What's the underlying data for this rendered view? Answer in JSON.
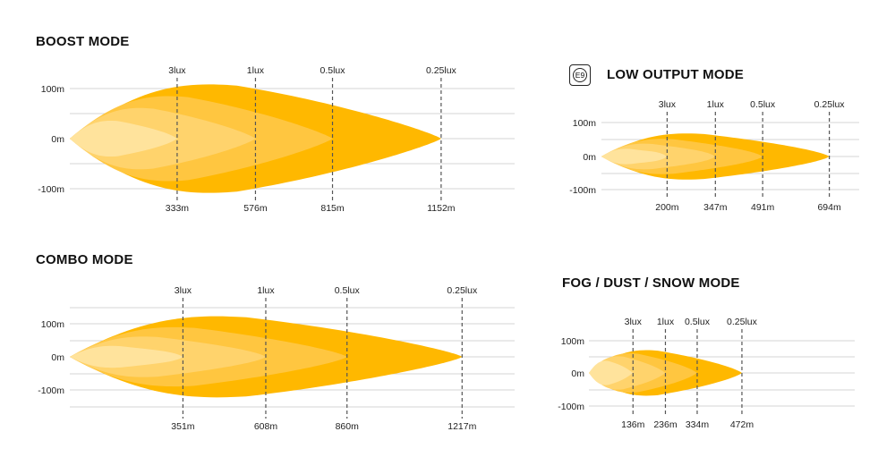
{
  "colors": {
    "outer": "#ffe39c",
    "mid1": "#ffd36c",
    "mid2": "#ffc640",
    "core": "#ffb800",
    "grid": "#d4d4d4",
    "dash": "#555555"
  },
  "emark": {
    "icon": "e9-approval-mark-icon",
    "label": "E9"
  },
  "chart_data": [
    {
      "type": "area",
      "title": "BOOST MODE",
      "y_ticks": [
        "100m",
        "0m",
        "-100m"
      ],
      "markers": [
        {
          "lux": "3lux",
          "distance": "333m",
          "x": 333
        },
        {
          "lux": "1lux",
          "distance": "576m",
          "x": 576
        },
        {
          "lux": "0.5lux",
          "distance": "815m",
          "x": 815
        },
        {
          "lux": "0.25lux",
          "distance": "1152m",
          "x": 1152
        }
      ],
      "xlim": [
        0,
        1380
      ],
      "ylim": [
        -150,
        150
      ],
      "beam_half_widths_m": [
        115,
        90,
        65,
        38
      ]
    },
    {
      "type": "area",
      "title": "LOW OUTPUT MODE",
      "y_ticks": [
        "100m",
        "0m",
        "-100m"
      ],
      "markers": [
        {
          "lux": "3lux",
          "distance": "200m",
          "x": 200
        },
        {
          "lux": "1lux",
          "distance": "347m",
          "x": 347
        },
        {
          "lux": "0.5lux",
          "distance": "491m",
          "x": 491
        },
        {
          "lux": "0.25lux",
          "distance": "694m",
          "x": 694
        }
      ],
      "xlim": [
        0,
        785
      ],
      "ylim": [
        -150,
        150
      ],
      "beam_half_widths_m": [
        72,
        55,
        40,
        24
      ]
    },
    {
      "type": "area",
      "title": "COMBO MODE",
      "y_ticks": [
        "100m",
        "0m",
        "-100m"
      ],
      "markers": [
        {
          "lux": "3lux",
          "distance": "351m",
          "x": 351
        },
        {
          "lux": "1lux",
          "distance": "608m",
          "x": 608
        },
        {
          "lux": "0.5lux",
          "distance": "860m",
          "x": 860
        },
        {
          "lux": "0.25lux",
          "distance": "1217m",
          "x": 1217
        }
      ],
      "xlim": [
        0,
        1380
      ],
      "ylim": [
        -150,
        150
      ],
      "beam_half_widths_m": [
        130,
        95,
        65,
        35
      ]
    },
    {
      "type": "area",
      "title": "FOG / DUST / SNOW MODE",
      "y_ticks": [
        "100m",
        "0m",
        "-100m"
      ],
      "markers": [
        {
          "lux": "3lux",
          "distance": "136m",
          "x": 136
        },
        {
          "lux": "1lux",
          "distance": "236m",
          "x": 236
        },
        {
          "lux": "0.5lux",
          "distance": "334m",
          "x": 334
        },
        {
          "lux": "0.25lux",
          "distance": "472m",
          "x": 472
        }
      ],
      "xlim": [
        0,
        820
      ],
      "ylim": [
        -150,
        150
      ],
      "beam_half_widths_m": [
        75,
        65,
        55,
        40
      ]
    }
  ]
}
